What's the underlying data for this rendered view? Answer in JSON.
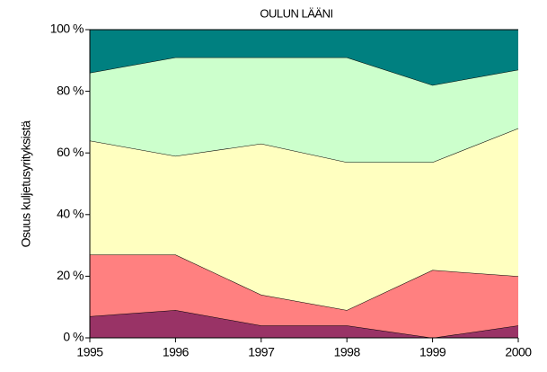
{
  "chart_data": {
    "type": "stacked-area",
    "title": "OULUN LÄÄNI",
    "y_label": "Osuus kuljetusyrityksistä",
    "x": [
      1995,
      1996,
      1997,
      1998,
      1999,
      2000
    ],
    "xlim": [
      1995,
      2000
    ],
    "xticks": [
      1995,
      1996,
      1997,
      1998,
      1999,
      2000
    ],
    "ylim": [
      0,
      100
    ],
    "yticks": [
      {
        "value": 0,
        "label": "0 %"
      },
      {
        "value": 20,
        "label": "20 %"
      },
      {
        "value": 40,
        "label": "40 %"
      },
      {
        "value": 60,
        "label": "60 %"
      },
      {
        "value": 80,
        "label": "80 %"
      },
      {
        "value": 100,
        "label": "100 %"
      }
    ],
    "grid": false,
    "series": [
      {
        "color": "#993366",
        "values": [
          7,
          9,
          4,
          4,
          0,
          4
        ]
      },
      {
        "color": "#ff8080",
        "values": [
          20,
          18,
          10,
          5,
          22,
          16
        ]
      },
      {
        "color": "#ffffc0",
        "values": [
          37,
          32,
          49,
          48,
          35,
          48
        ]
      },
      {
        "color": "#ccffcc",
        "values": [
          22,
          32,
          28,
          34,
          25,
          19
        ]
      },
      {
        "color": "#008080",
        "values": [
          14,
          9,
          9,
          9,
          18,
          13
        ]
      }
    ]
  }
}
